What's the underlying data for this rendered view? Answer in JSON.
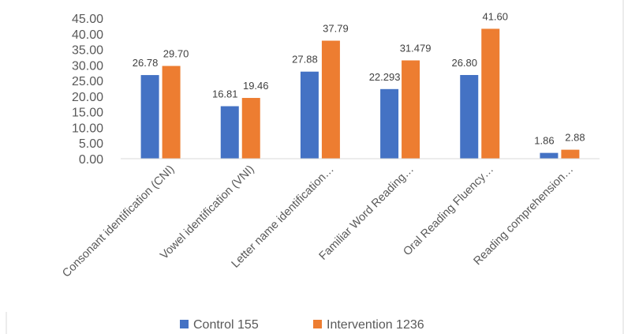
{
  "chart_data": {
    "type": "bar",
    "title": "",
    "xlabel": "",
    "ylabel": "",
    "ylim": [
      0,
      45
    ],
    "y_ticks": [
      0,
      5,
      10,
      15,
      20,
      25,
      30,
      35,
      40,
      45
    ],
    "y_tick_labels": [
      "0.00",
      "5.00",
      "10.00",
      "15.00",
      "20.00",
      "25.00",
      "30.00",
      "35.00",
      "40.00",
      "45.00"
    ],
    "categories": [
      "Consonant identification (CNI)",
      "Vowel identification (VNI)",
      "Letter name identification…",
      "Familiar Word Reading…",
      "Oral Reading Fluency…",
      "Reading comprehension…"
    ],
    "series": [
      {
        "name": "Control 155",
        "color": "#4472c4",
        "values": [
          26.78,
          16.81,
          27.88,
          22.293,
          26.8,
          1.86
        ],
        "labels": [
          "26.78",
          "16.81",
          "27.88",
          "22.293",
          "26.80",
          "1.86"
        ]
      },
      {
        "name": "Intervention 1236",
        "color": "#ed7d31",
        "values": [
          29.7,
          19.46,
          37.79,
          31.479,
          41.6,
          2.88
        ],
        "labels": [
          "29.70",
          "19.46",
          "37.79",
          "31.479",
          "41.60",
          "2.88"
        ]
      }
    ],
    "grid": false,
    "legend_position": "bottom"
  }
}
